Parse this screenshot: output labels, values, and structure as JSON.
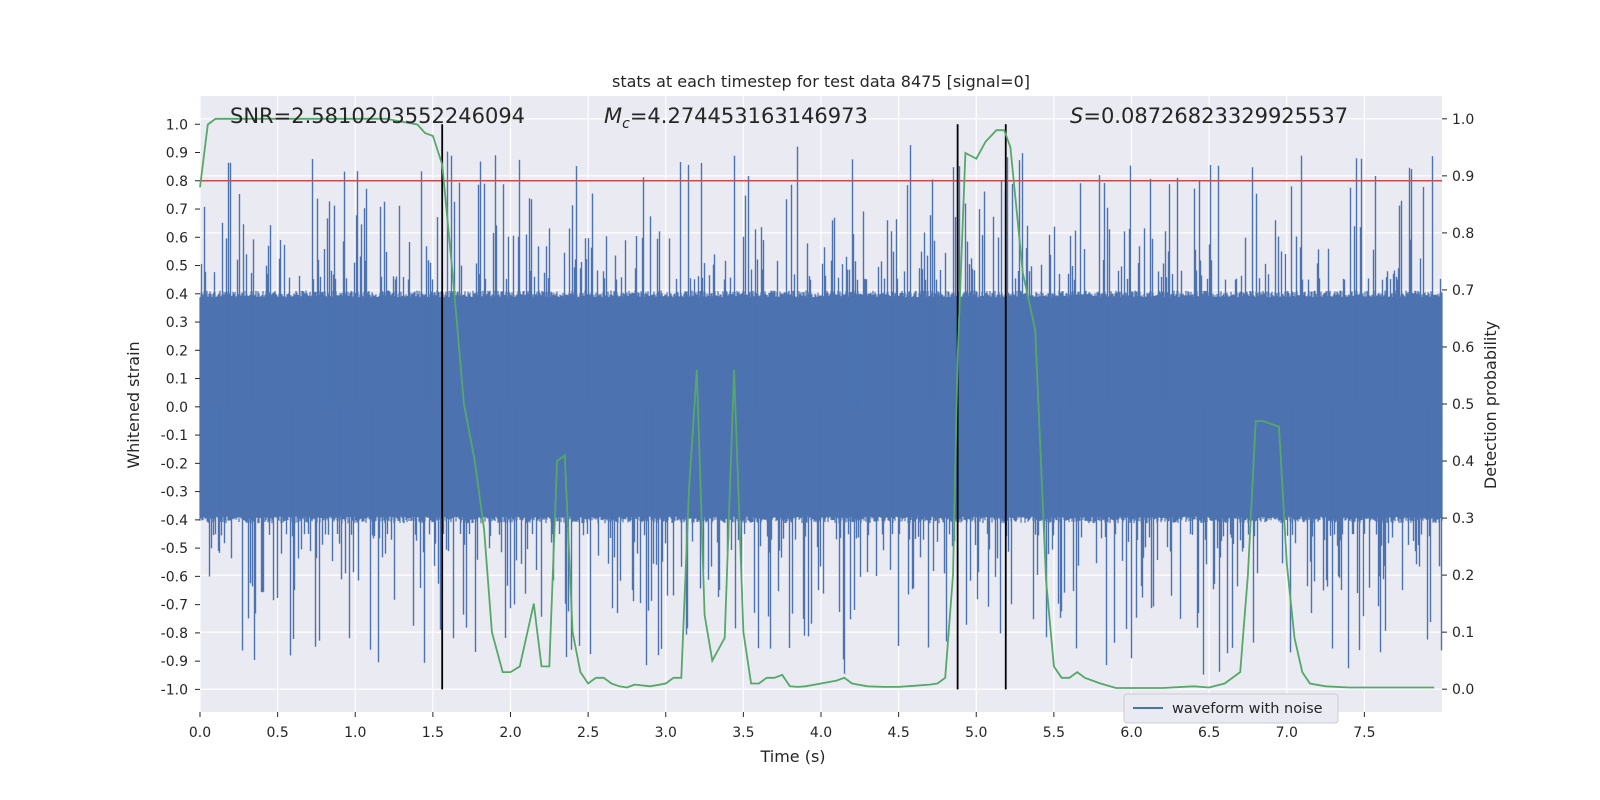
{
  "chart_data": {
    "type": "line",
    "title": "stats at each timestep for test data 8475 [signal=0]",
    "xlabel": "Time (s)",
    "ylabel_left": "Whitened strain",
    "ylabel_right": "Detection probability",
    "xlim": [
      0.0,
      8.0
    ],
    "ylim_left": [
      -1.08,
      1.1
    ],
    "ylim_right": [
      -0.04,
      1.04
    ],
    "x_ticks": [
      "0.0",
      "0.5",
      "1.0",
      "1.5",
      "2.0",
      "2.5",
      "3.0",
      "3.5",
      "4.0",
      "4.5",
      "5.0",
      "5.5",
      "6.0",
      "6.5",
      "7.0",
      "7.5"
    ],
    "y_ticks_left": [
      "1.0",
      "0.9",
      "0.8",
      "0.7",
      "0.6",
      "0.5",
      "0.4",
      "0.3",
      "0.2",
      "0.1",
      "0.0",
      "-0.1",
      "-0.2",
      "-0.3",
      "-0.4",
      "-0.5",
      "-0.6",
      "-0.7",
      "-0.8",
      "-0.9",
      "-1.0"
    ],
    "y_ticks_right": [
      "1.0",
      "0.9",
      "0.8",
      "0.7",
      "0.6",
      "0.5",
      "0.4",
      "0.3",
      "0.2",
      "0.1",
      "0.0"
    ],
    "grid": true,
    "annotations": {
      "snr": "SNR=2.5810203552246094",
      "mc_symbol": "M",
      "mc_sub": "c",
      "mc_value": "=4.274453163146973",
      "s_symbol": "S",
      "s_value": "=0.08726823329925537"
    },
    "threshold": {
      "y": 0.8,
      "color": "#c44e52"
    },
    "vertical_lines": [
      1.56,
      4.88,
      5.19
    ],
    "series": [
      {
        "name": "waveform with noise",
        "color": "#4c72b0",
        "kind": "noise",
        "core_amplitude": 0.4,
        "typical_peak_range": [
          0.45,
          0.95
        ],
        "max_abs": 0.98
      },
      {
        "name": "detection probability",
        "color": "#55a868",
        "axis": "right",
        "x": [
          0.0,
          0.05,
          0.1,
          0.15,
          0.2,
          0.4,
          0.6,
          0.8,
          1.0,
          1.2,
          1.3,
          1.4,
          1.45,
          1.5,
          1.56,
          1.63,
          1.7,
          1.77,
          1.83,
          1.88,
          1.95,
          2.0,
          2.06,
          2.15,
          2.2,
          2.25,
          2.3,
          2.35,
          2.4,
          2.45,
          2.5,
          2.55,
          2.6,
          2.65,
          2.7,
          2.75,
          2.8,
          2.9,
          3.0,
          3.05,
          3.1,
          3.15,
          3.2,
          3.25,
          3.3,
          3.38,
          3.44,
          3.5,
          3.55,
          3.6,
          3.65,
          3.7,
          3.75,
          3.8,
          3.85,
          3.9,
          4.0,
          4.1,
          4.15,
          4.2,
          4.3,
          4.4,
          4.5,
          4.6,
          4.7,
          4.75,
          4.8,
          4.85,
          4.88,
          4.93,
          5.0,
          5.06,
          5.13,
          5.18,
          5.22,
          5.3,
          5.38,
          5.45,
          5.5,
          5.55,
          5.6,
          5.65,
          5.7,
          5.8,
          5.9,
          6.0,
          6.2,
          6.4,
          6.5,
          6.6,
          6.7,
          6.75,
          6.8,
          6.85,
          6.95,
          7.0,
          7.05,
          7.1,
          7.15,
          7.25,
          7.4,
          7.6,
          7.8,
          7.95
        ],
        "y": [
          0.88,
          0.99,
          1.0,
          1.0,
          1.0,
          1.0,
          1.0,
          1.0,
          1.0,
          1.0,
          0.995,
          0.99,
          0.975,
          0.97,
          0.92,
          0.72,
          0.5,
          0.4,
          0.28,
          0.1,
          0.03,
          0.03,
          0.04,
          0.15,
          0.04,
          0.04,
          0.4,
          0.41,
          0.1,
          0.03,
          0.01,
          0.02,
          0.02,
          0.01,
          0.005,
          0.003,
          0.008,
          0.005,
          0.01,
          0.02,
          0.02,
          0.35,
          0.56,
          0.13,
          0.05,
          0.09,
          0.56,
          0.1,
          0.01,
          0.01,
          0.02,
          0.02,
          0.025,
          0.005,
          0.004,
          0.005,
          0.01,
          0.015,
          0.02,
          0.01,
          0.005,
          0.004,
          0.004,
          0.006,
          0.008,
          0.01,
          0.02,
          0.2,
          0.58,
          0.94,
          0.93,
          0.96,
          0.98,
          0.98,
          0.95,
          0.73,
          0.63,
          0.19,
          0.04,
          0.02,
          0.02,
          0.03,
          0.02,
          0.01,
          0.002,
          0.002,
          0.002,
          0.005,
          0.003,
          0.01,
          0.03,
          0.2,
          0.47,
          0.47,
          0.46,
          0.22,
          0.09,
          0.03,
          0.01,
          0.005,
          0.003,
          0.003,
          0.003,
          0.003
        ]
      }
    ],
    "legend": {
      "label": "waveform with noise",
      "placement": "lower-right"
    }
  }
}
